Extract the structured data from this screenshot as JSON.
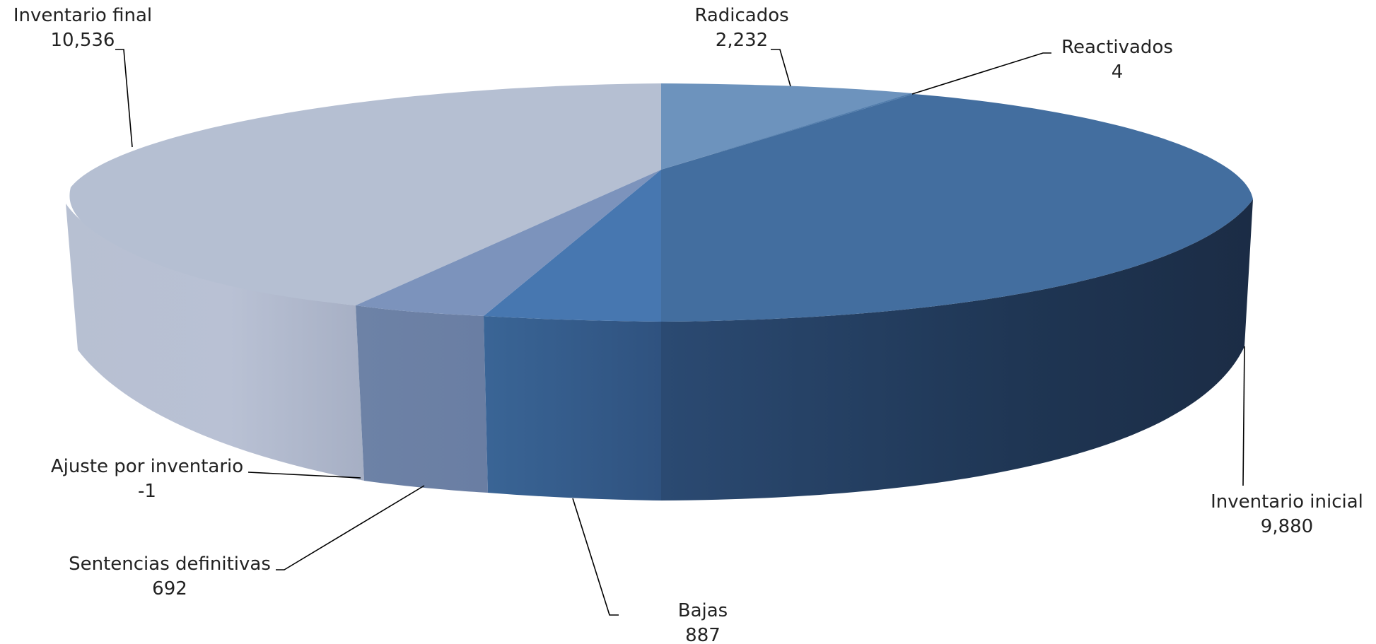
{
  "chart_data": {
    "type": "pie",
    "title": "",
    "three_d": true,
    "slices": [
      {
        "label": "Radicados",
        "value_text": "2,232",
        "value": 2232,
        "color": "#6d93bd"
      },
      {
        "label": "Reactivados",
        "value_text": "4",
        "value": 4,
        "color": "#4f7bab"
      },
      {
        "label": "Inventario inicial",
        "value_text": "9,880",
        "value": 9880,
        "color": "#436e9f"
      },
      {
        "label": "Bajas",
        "value_text": "887",
        "value": 887,
        "color": "#4777b0"
      },
      {
        "label": "Sentencias definitivas",
        "value_text": "692",
        "value": 692,
        "color": "#7c93bc"
      },
      {
        "label": "Ajuste por inventario",
        "value_text": "-1",
        "value": -1,
        "color": "#8fa1c2"
      },
      {
        "label": "Inventario final",
        "value_text": "10,536",
        "value": 10536,
        "color": "#b5bfd2"
      }
    ]
  }
}
